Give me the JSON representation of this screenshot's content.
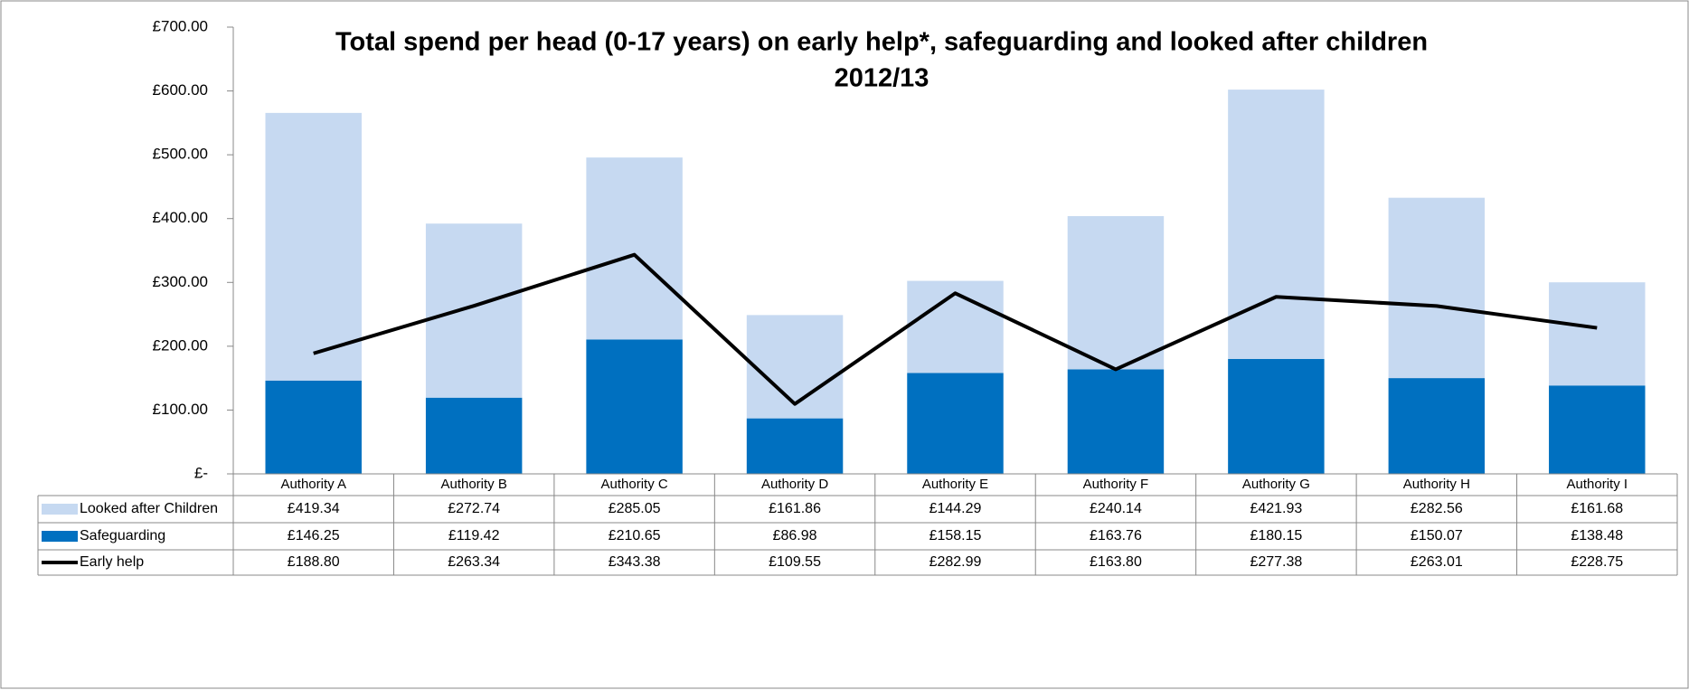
{
  "chart_data": {
    "type": "bar",
    "title": [
      "Total spend per head (0-17 years) on early help*, safeguarding and looked after children",
      "2012/13"
    ],
    "categories": [
      "Authority A",
      "Authority B",
      "Authority C",
      "Authority D",
      "Authority E",
      "Authority F",
      "Authority G",
      "Authority H",
      "Authority I"
    ],
    "series": [
      {
        "name": "Looked after Children",
        "type": "bar",
        "color": "#c6d9f1",
        "values": [
          419.34,
          272.74,
          285.05,
          161.86,
          144.29,
          240.14,
          421.93,
          282.56,
          161.68
        ],
        "value_labels": [
          "£419.34",
          "£272.74",
          "£285.05",
          "£161.86",
          "£144.29",
          "£240.14",
          "£421.93",
          "£282.56",
          "£161.68"
        ]
      },
      {
        "name": "Safeguarding",
        "type": "bar",
        "color": "#0070c0",
        "values": [
          146.25,
          119.42,
          210.65,
          86.98,
          158.15,
          163.76,
          180.15,
          150.07,
          138.48
        ],
        "value_labels": [
          "£146.25",
          "£119.42",
          "£210.65",
          "£86.98",
          "£158.15",
          "£163.76",
          "£180.15",
          "£150.07",
          "£138.48"
        ]
      },
      {
        "name": "Early help",
        "type": "line",
        "color": "#000000",
        "values": [
          188.8,
          263.34,
          343.38,
          109.55,
          282.99,
          163.8,
          277.38,
          263.01,
          228.75
        ],
        "value_labels": [
          "£188.80",
          "£263.34",
          "£343.38",
          "£109.55",
          "£282.99",
          "£163.80",
          "£277.38",
          "£263.01",
          "£228.75"
        ]
      }
    ],
    "stacked": true,
    "ylim": [
      0,
      700
    ],
    "yticks": [
      {
        "value": 0,
        "label": "£-"
      },
      {
        "value": 100,
        "label": "£100.00"
      },
      {
        "value": 200,
        "label": "£200.00"
      },
      {
        "value": 300,
        "label": "£300.00"
      },
      {
        "value": 400,
        "label": "£400.00"
      },
      {
        "value": 500,
        "label": "£500.00"
      },
      {
        "value": 600,
        "label": "£600.00"
      },
      {
        "value": 700,
        "label": "£700.00"
      }
    ],
    "grid": false
  }
}
